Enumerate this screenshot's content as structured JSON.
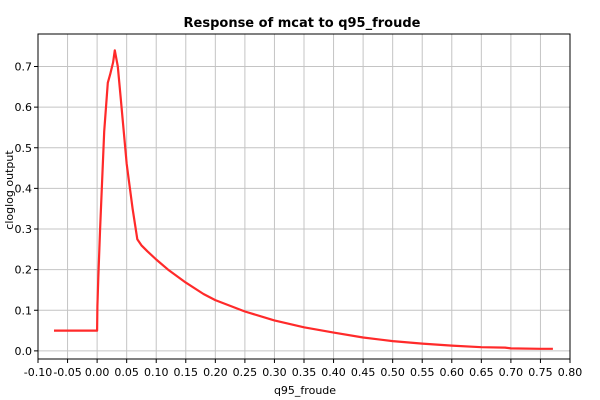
{
  "chart_data": {
    "type": "line",
    "title": "Response of mcat to q95_froude",
    "xlabel": "q95_froude",
    "ylabel": "cloglog output",
    "xlim": [
      -0.1,
      0.8
    ],
    "ylim": [
      -0.02,
      0.78
    ],
    "xticks": [
      "-0.10",
      "-0.05",
      "0.00",
      "0.05",
      "0.10",
      "0.15",
      "0.20",
      "0.25",
      "0.30",
      "0.35",
      "0.40",
      "0.45",
      "0.50",
      "0.55",
      "0.60",
      "0.65",
      "0.70",
      "0.75",
      "0.80"
    ],
    "yticks": [
      "0.0",
      "0.1",
      "0.2",
      "0.3",
      "0.4",
      "0.5",
      "0.6",
      "0.7"
    ],
    "grid": true,
    "series": [
      {
        "color": "#ff2a2a",
        "x": [
          -0.073,
          -0.05,
          -0.02,
          0.0,
          0.0005,
          0.002,
          0.005,
          0.012,
          0.018,
          0.022,
          0.027,
          0.03,
          0.035,
          0.04,
          0.05,
          0.06,
          0.068,
          0.075,
          0.085,
          0.1,
          0.12,
          0.15,
          0.18,
          0.2,
          0.25,
          0.3,
          0.35,
          0.4,
          0.45,
          0.5,
          0.55,
          0.6,
          0.65,
          0.69,
          0.7,
          0.75,
          0.771
        ],
        "y": [
          0.05,
          0.05,
          0.05,
          0.05,
          0.11,
          0.18,
          0.3,
          0.54,
          0.66,
          0.68,
          0.71,
          0.74,
          0.7,
          0.62,
          0.46,
          0.35,
          0.275,
          0.26,
          0.245,
          0.225,
          0.2,
          0.168,
          0.14,
          0.125,
          0.097,
          0.075,
          0.058,
          0.045,
          0.033,
          0.024,
          0.018,
          0.013,
          0.009,
          0.008,
          0.006,
          0.005,
          0.005
        ]
      }
    ]
  }
}
